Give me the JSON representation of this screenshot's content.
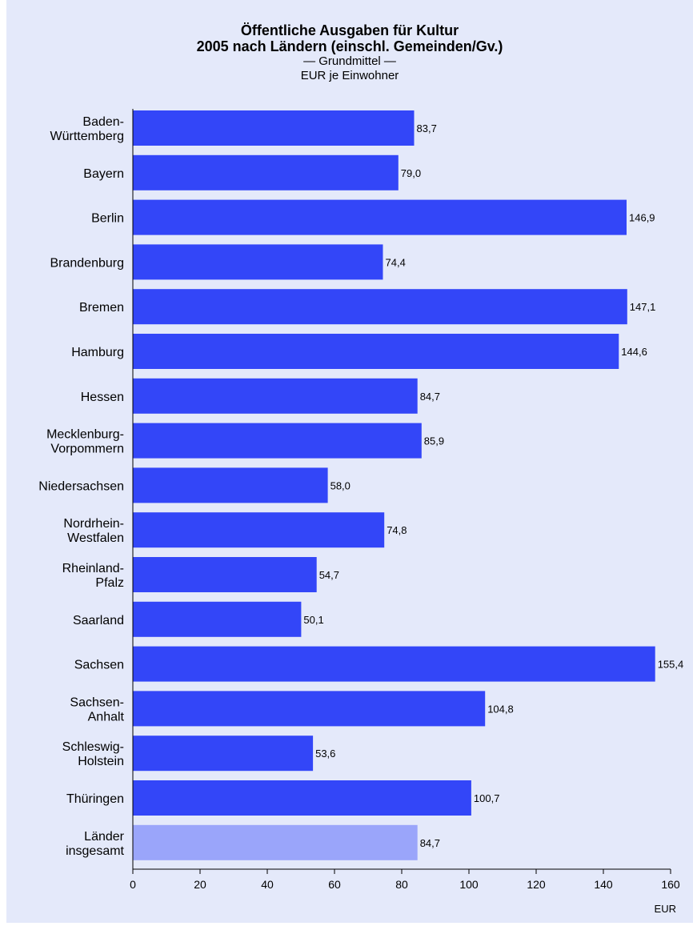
{
  "title": "Öffentliche Ausgaben für Kultur",
  "title2": "2005 nach Ländern (einschl. Gemeinden/Gv.)",
  "subtitle": "— Grundmittel —",
  "unit_line": "EUR je Einwohner",
  "colors": {
    "bar": "#3346f8",
    "bar_total": "#9aa5fa",
    "background": "#e4e9fa"
  },
  "chart_data": {
    "type": "bar",
    "orientation": "horizontal",
    "title": "Öffentliche Ausgaben für Kultur",
    "subtitle": "2005 nach Ländern (einschl. Gemeinden/Gv.)",
    "xlabel": "EUR",
    "xlim": [
      0,
      160
    ],
    "xticks": [
      0,
      20,
      40,
      60,
      80,
      100,
      120,
      140,
      160
    ],
    "grid": false,
    "categories": [
      "Baden-\nWürttemberg",
      "Bayern",
      "Berlin",
      "Brandenburg",
      "Bremen",
      "Hamburg",
      "Hessen",
      "Mecklenburg-\nVorpommern",
      "Niedersachsen",
      "Nordrhein-\nWestfalen",
      "Rheinland-\nPfalz",
      "Saarland",
      "Sachsen",
      "Sachsen-\nAnhalt",
      "Schleswig-\nHolstein",
      "Thüringen",
      "Länder\ninsgesamt"
    ],
    "values": [
      83.7,
      79.0,
      146.9,
      74.4,
      147.1,
      144.6,
      84.7,
      85.9,
      58.0,
      74.8,
      54.7,
      50.1,
      155.4,
      104.8,
      53.6,
      100.7,
      84.7
    ],
    "value_labels": [
      "83,7",
      "79,0",
      "146,9",
      "74,4",
      "147,1",
      "144,6",
      "84,7",
      "85,9",
      "58,0",
      "74,8",
      "54,7",
      "50,1",
      "155,4",
      "104,8",
      "53,6",
      "100,7",
      "84,7"
    ],
    "highlight_index": 16
  }
}
